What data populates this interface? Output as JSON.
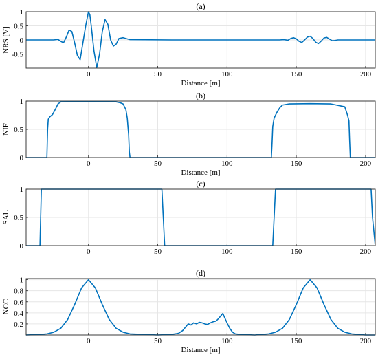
{
  "figure": {
    "line_color": "#0072BD",
    "grid": true
  },
  "chart_data": [
    {
      "type": "line",
      "title": "(a)",
      "xlabel": "Distance [m]",
      "ylabel": "NRS [V]",
      "xlim": [
        -45,
        207
      ],
      "ylim": [
        -1,
        1
      ],
      "xticks": [
        0,
        50,
        100,
        150,
        200
      ],
      "xtick_labels": [
        "0",
        "50",
        "100",
        "150",
        "200"
      ],
      "yticks": [
        -0.5,
        0,
        0.5,
        1
      ],
      "ytick_labels": [
        "-0.5",
        "0",
        "0.5",
        "1"
      ],
      "series": [
        {
          "x": [
            -45,
            -25,
            -22,
            -20,
            -18,
            -16,
            -14,
            -12,
            -10,
            -8,
            -6,
            -4,
            -2,
            0,
            1,
            2,
            4,
            6,
            8,
            10,
            12,
            14,
            16,
            18,
            20,
            22,
            25,
            30,
            60,
            100,
            130,
            138,
            141,
            144,
            146,
            148,
            150,
            152,
            154,
            156,
            158,
            160,
            162,
            164,
            166,
            168,
            170,
            172,
            174,
            176,
            178,
            180,
            184,
            190,
            207
          ],
          "y": [
            0,
            0,
            0.02,
            -0.05,
            -0.1,
            0.1,
            0.35,
            0.3,
            -0.1,
            -0.55,
            -0.7,
            -0.1,
            0.5,
            1,
            0.9,
            0.5,
            -0.4,
            -0.98,
            -0.5,
            0.3,
            0.72,
            0.55,
            0.0,
            -0.22,
            -0.15,
            0.05,
            0.08,
            0.01,
            0,
            0,
            0,
            0.0,
            0.01,
            -0.01,
            0.05,
            0.08,
            0.04,
            -0.05,
            -0.09,
            0.0,
            0.1,
            0.13,
            0.05,
            -0.08,
            -0.13,
            -0.04,
            0.07,
            0.09,
            0.03,
            -0.03,
            -0.02,
            0,
            0,
            0,
            0
          ]
        }
      ]
    },
    {
      "type": "line",
      "title": "(b)",
      "xlabel": "Distance [m]",
      "ylabel": "NIF",
      "xlim": [
        -45,
        207
      ],
      "ylim": [
        0,
        1
      ],
      "xticks": [
        0,
        50,
        100,
        150,
        200
      ],
      "xtick_labels": [
        "0",
        "50",
        "100",
        "150",
        "200"
      ],
      "yticks": [
        0,
        0.5,
        1
      ],
      "ytick_labels": [
        "0",
        "0.5",
        "1"
      ],
      "series": [
        {
          "x": [
            -45,
            -30,
            -29.5,
            -29,
            -28,
            -26,
            -24,
            -22,
            -20,
            -15,
            0,
            20,
            23,
            25,
            26,
            27,
            28,
            29,
            29.5,
            30,
            60,
            100,
            132,
            132.5,
            133,
            134,
            136,
            138,
            140,
            145,
            160,
            175,
            185,
            187,
            188,
            188.5,
            189,
            207
          ],
          "y": [
            0,
            0,
            0.5,
            0.68,
            0.72,
            0.76,
            0.85,
            0.95,
            0.985,
            0.99,
            0.99,
            0.985,
            0.97,
            0.95,
            0.9,
            0.85,
            0.7,
            0.4,
            0.1,
            0,
            0,
            0,
            0,
            0.25,
            0.55,
            0.7,
            0.8,
            0.88,
            0.93,
            0.95,
            0.955,
            0.95,
            0.9,
            0.75,
            0.65,
            0.3,
            0,
            0
          ]
        }
      ]
    },
    {
      "type": "line",
      "title": "(c)",
      "xlabel": "",
      "ylabel": "SAL",
      "xlim": [
        -45,
        207
      ],
      "ylim": [
        0,
        1
      ],
      "xticks": [
        0,
        50,
        100,
        150,
        200
      ],
      "xtick_labels": [
        "0",
        "50",
        "100",
        "150",
        "200"
      ],
      "yticks": [
        0,
        0.5,
        1
      ],
      "ytick_labels": [
        "0",
        "0.5",
        "1"
      ],
      "series": [
        {
          "x": [
            -45,
            -35,
            -34,
            53,
            54,
            55,
            106,
            133,
            134,
            135,
            204,
            205,
            207
          ],
          "y": [
            0,
            0,
            1,
            1,
            0.5,
            0.0,
            0.0,
            0.0,
            0.5,
            1,
            1,
            0.5,
            0
          ]
        }
      ]
    },
    {
      "type": "line",
      "title": "(d)",
      "xlabel": "Distance [m]",
      "ylabel": "NCC",
      "xlim": [
        -45,
        207
      ],
      "ylim": [
        0,
        1.02
      ],
      "xticks": [
        0,
        50,
        100,
        150,
        200
      ],
      "xtick_labels": [
        "0",
        "50",
        "100",
        "150",
        "200"
      ],
      "yticks": [
        0.2,
        0.4,
        0.6,
        0.8,
        1
      ],
      "ytick_labels": [
        "0.2",
        "0.4",
        "0.6",
        "0.8",
        "1"
      ],
      "series": [
        {
          "x": [
            -45,
            -35,
            -30,
            -25,
            -20,
            -15,
            -10,
            -5,
            0,
            5,
            10,
            15,
            20,
            25,
            30,
            40,
            50,
            60,
            65,
            68,
            70,
            72,
            74,
            76,
            78,
            80,
            82,
            84,
            86,
            88,
            90,
            92,
            94,
            96,
            97,
            98,
            100,
            102,
            104,
            106,
            110,
            120,
            125,
            130,
            135,
            140,
            145,
            150,
            155,
            160,
            165,
            170,
            175,
            180,
            185,
            190,
            195,
            200,
            207
          ],
          "y": [
            0,
            0.01,
            0.02,
            0.05,
            0.12,
            0.28,
            0.55,
            0.85,
            1,
            0.85,
            0.55,
            0.28,
            0.12,
            0.05,
            0.02,
            0.01,
            0,
            0.01,
            0.03,
            0.08,
            0.14,
            0.2,
            0.18,
            0.22,
            0.2,
            0.23,
            0.22,
            0.2,
            0.19,
            0.22,
            0.24,
            0.25,
            0.3,
            0.36,
            0.39,
            0.33,
            0.22,
            0.12,
            0.05,
            0.02,
            0.01,
            0,
            0.01,
            0.02,
            0.05,
            0.12,
            0.28,
            0.55,
            0.85,
            1,
            0.85,
            0.55,
            0.28,
            0.12,
            0.05,
            0.02,
            0.01,
            0,
            0
          ]
        }
      ]
    }
  ]
}
